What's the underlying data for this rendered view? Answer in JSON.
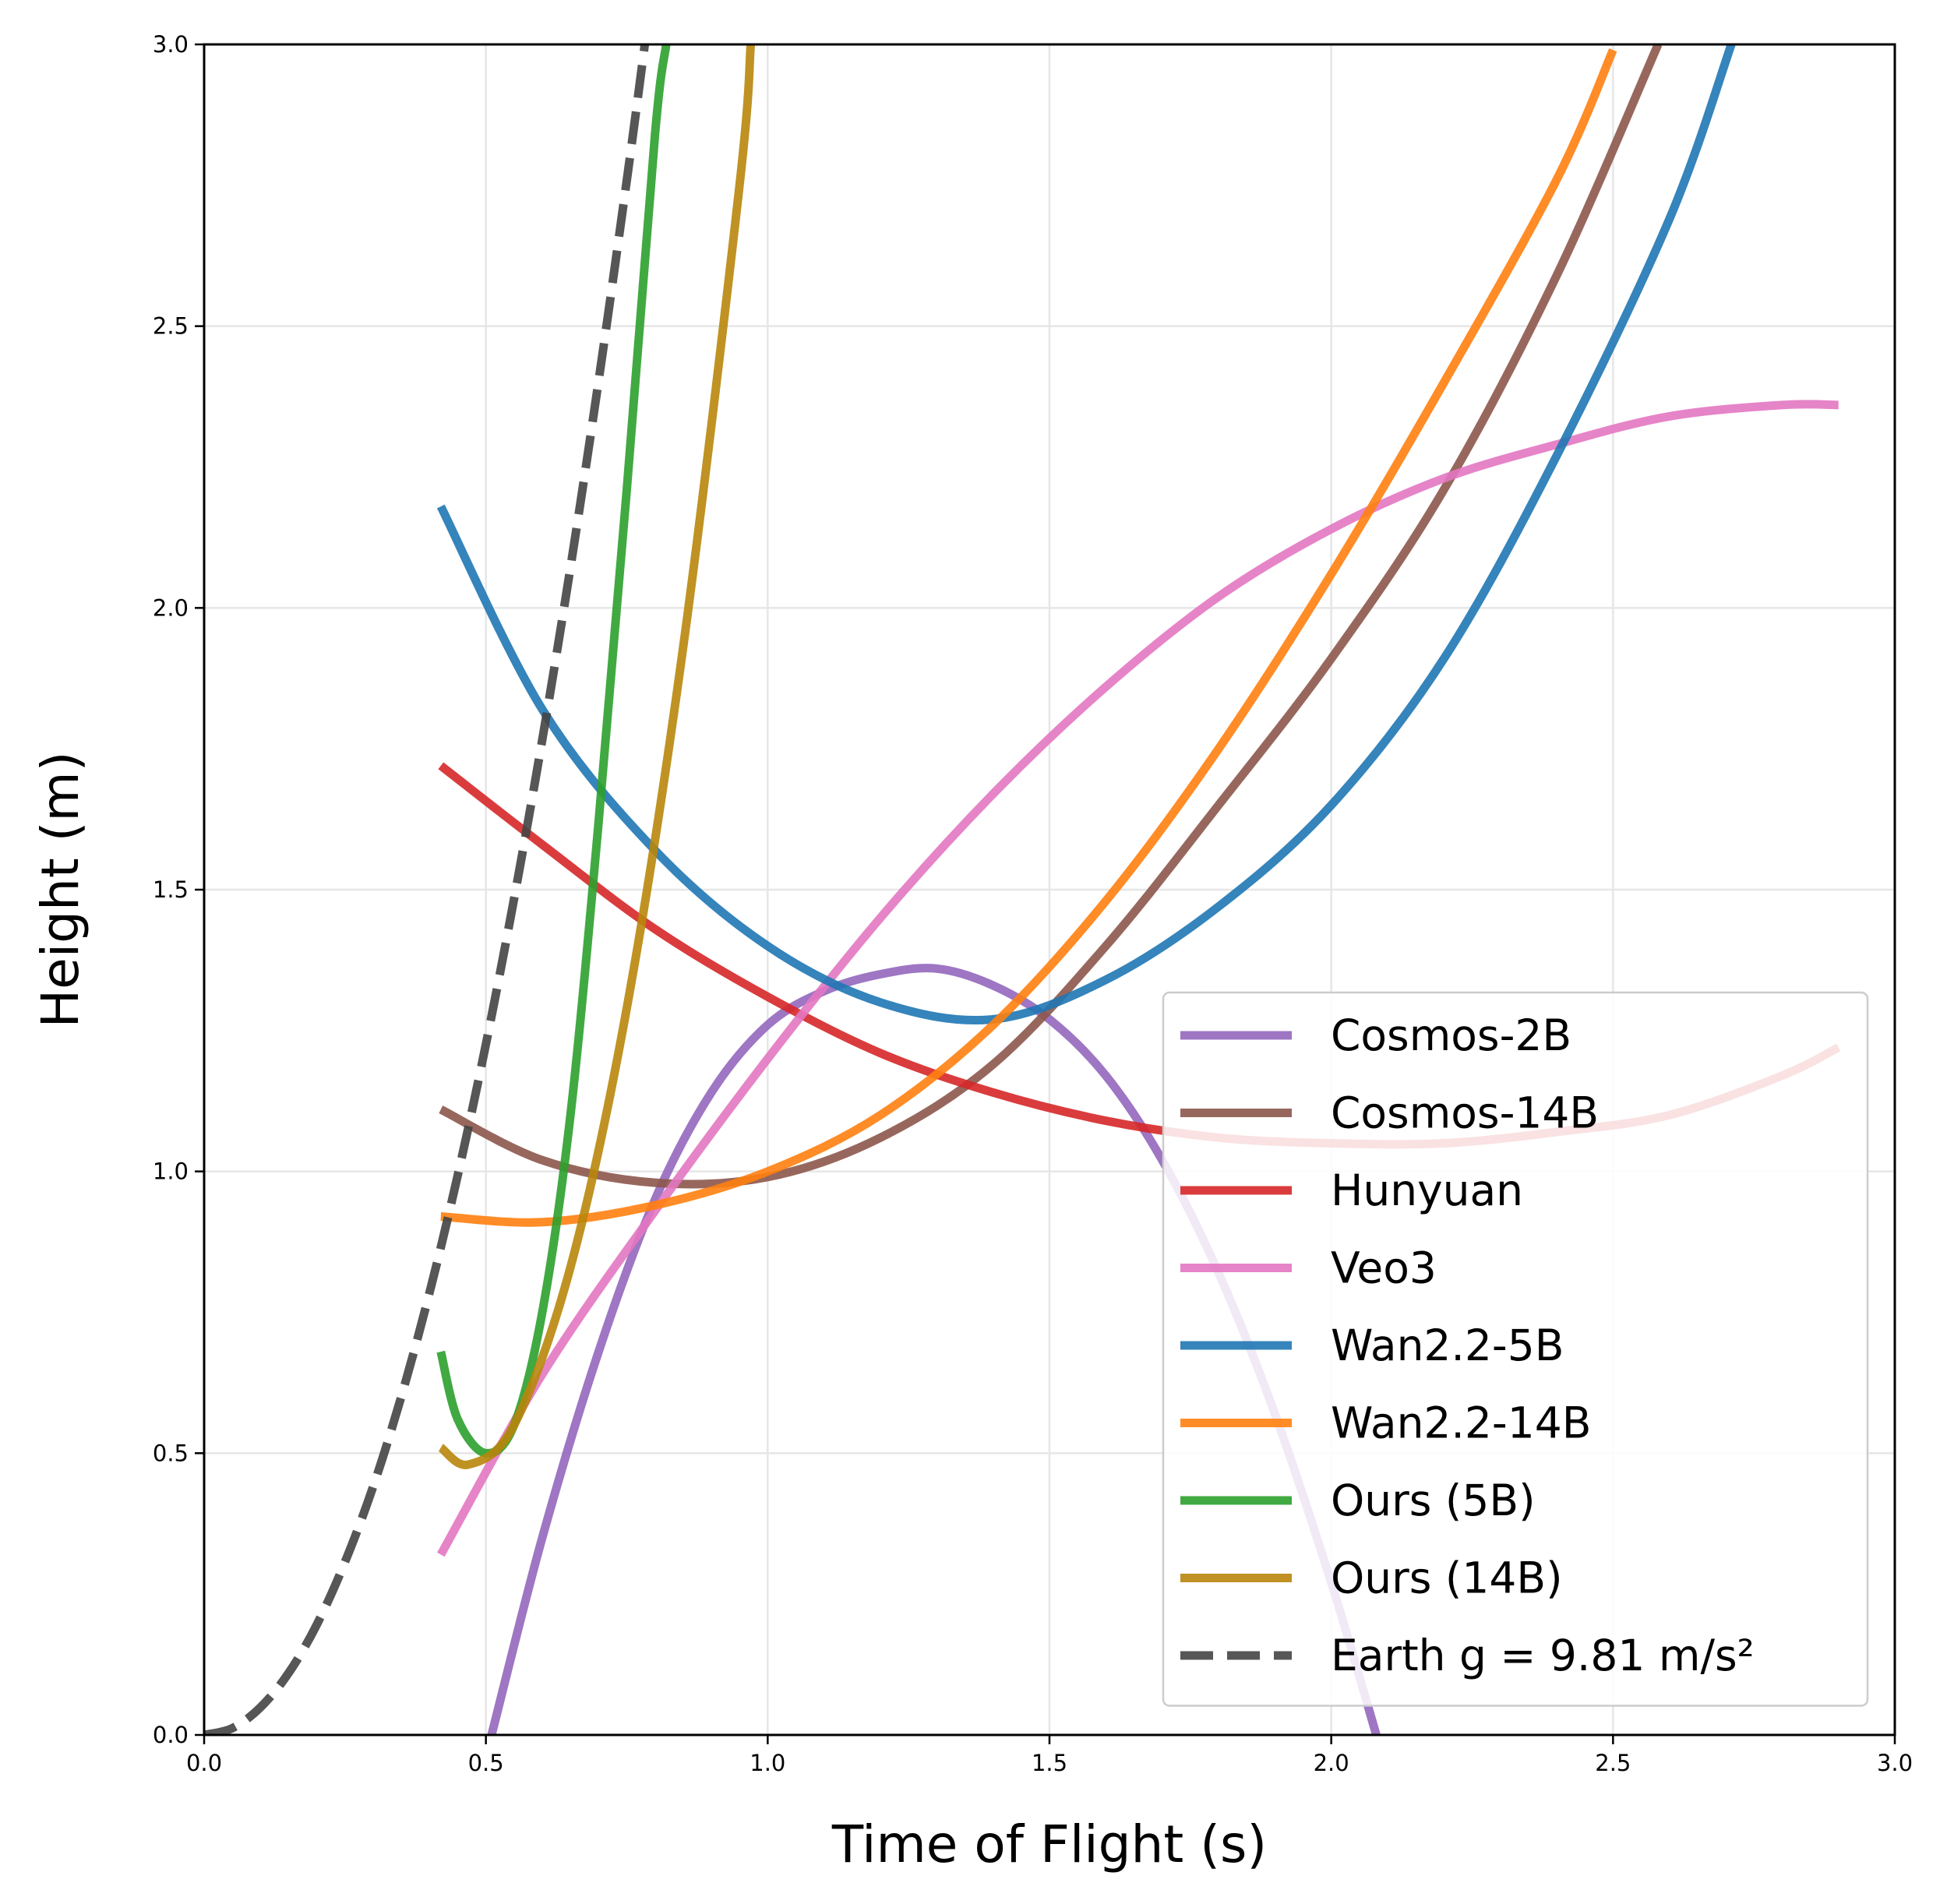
{
  "chart_data": {
    "type": "line",
    "title": "",
    "xlabel": "Time of Flight (s)",
    "ylabel": "Height (m)",
    "xlim": [
      0.0,
      3.0
    ],
    "ylim": [
      0.0,
      3.0
    ],
    "xticks": [
      "0.0",
      "0.5",
      "1.0",
      "1.5",
      "2.0",
      "2.5",
      "3.0"
    ],
    "yticks": [
      "0.0",
      "0.5",
      "1.0",
      "1.5",
      "2.0",
      "2.5",
      "3.0"
    ],
    "grid": true,
    "legend_position": "lower-right",
    "series": [
      {
        "name": "Cosmos-2B",
        "color": "#9467bd",
        "style": "solid",
        "points": [
          [
            0.51,
            0.0
          ],
          [
            0.6,
            0.35
          ],
          [
            0.7,
            0.68
          ],
          [
            0.8,
            0.95
          ],
          [
            0.9,
            1.14
          ],
          [
            1.0,
            1.26
          ],
          [
            1.1,
            1.32
          ],
          [
            1.2,
            1.35
          ],
          [
            1.3,
            1.36
          ],
          [
            1.4,
            1.33
          ],
          [
            1.5,
            1.27
          ],
          [
            1.6,
            1.17
          ],
          [
            1.7,
            1.02
          ],
          [
            1.8,
            0.82
          ],
          [
            1.9,
            0.57
          ],
          [
            2.0,
            0.27
          ],
          [
            2.08,
            0.0
          ]
        ]
      },
      {
        "name": "Cosmos-14B",
        "color": "#8c564b",
        "style": "solid",
        "points": [
          [
            0.42,
            1.11
          ],
          [
            0.6,
            1.02
          ],
          [
            0.8,
            0.98
          ],
          [
            1.0,
            0.99
          ],
          [
            1.2,
            1.06
          ],
          [
            1.4,
            1.19
          ],
          [
            1.6,
            1.4
          ],
          [
            1.8,
            1.65
          ],
          [
            2.0,
            1.91
          ],
          [
            2.2,
            2.21
          ],
          [
            2.4,
            2.59
          ],
          [
            2.58,
            3.0
          ]
        ]
      },
      {
        "name": "Hunyuan",
        "color": "#d62728",
        "style": "solid",
        "points": [
          [
            0.42,
            1.72
          ],
          [
            0.6,
            1.58
          ],
          [
            0.8,
            1.43
          ],
          [
            1.0,
            1.31
          ],
          [
            1.2,
            1.21
          ],
          [
            1.4,
            1.14
          ],
          [
            1.6,
            1.09
          ],
          [
            1.8,
            1.06
          ],
          [
            2.0,
            1.05
          ],
          [
            2.2,
            1.05
          ],
          [
            2.4,
            1.07
          ],
          [
            2.6,
            1.1
          ],
          [
            2.8,
            1.17
          ],
          [
            2.9,
            1.22
          ]
        ]
      },
      {
        "name": "Veo3",
        "color": "#e377c2",
        "style": "solid",
        "points": [
          [
            0.42,
            0.32
          ],
          [
            0.6,
            0.64
          ],
          [
            0.8,
            0.93
          ],
          [
            1.0,
            1.2
          ],
          [
            1.2,
            1.45
          ],
          [
            1.4,
            1.67
          ],
          [
            1.6,
            1.86
          ],
          [
            1.8,
            2.02
          ],
          [
            2.0,
            2.14
          ],
          [
            2.2,
            2.23
          ],
          [
            2.4,
            2.29
          ],
          [
            2.6,
            2.34
          ],
          [
            2.8,
            2.36
          ],
          [
            2.9,
            2.36
          ]
        ]
      },
      {
        "name": "Wan2.2-5B",
        "color": "#1f77b4",
        "style": "solid",
        "points": [
          [
            0.42,
            2.18
          ],
          [
            0.6,
            1.82
          ],
          [
            0.8,
            1.57
          ],
          [
            1.0,
            1.4
          ],
          [
            1.2,
            1.3
          ],
          [
            1.4,
            1.27
          ],
          [
            1.6,
            1.34
          ],
          [
            1.8,
            1.47
          ],
          [
            2.0,
            1.65
          ],
          [
            2.2,
            1.91
          ],
          [
            2.4,
            2.27
          ],
          [
            2.6,
            2.69
          ],
          [
            2.71,
            3.0
          ]
        ]
      },
      {
        "name": "Wan2.2-14B",
        "color": "#ff7f0e",
        "style": "solid",
        "points": [
          [
            0.42,
            0.92
          ],
          [
            0.6,
            0.91
          ],
          [
            0.8,
            0.94
          ],
          [
            1.0,
            1.0
          ],
          [
            1.2,
            1.1
          ],
          [
            1.4,
            1.26
          ],
          [
            1.6,
            1.48
          ],
          [
            1.8,
            1.75
          ],
          [
            2.0,
            2.06
          ],
          [
            2.2,
            2.4
          ],
          [
            2.4,
            2.76
          ],
          [
            2.5,
            2.99
          ]
        ]
      },
      {
        "name": "Ours (5B)",
        "color": "#2ca02c",
        "style": "solid",
        "points": [
          [
            0.42,
            0.68
          ],
          [
            0.45,
            0.56
          ],
          [
            0.5,
            0.5
          ],
          [
            0.55,
            0.55
          ],
          [
            0.6,
            0.75
          ],
          [
            0.65,
            1.1
          ],
          [
            0.7,
            1.62
          ],
          [
            0.75,
            2.21
          ],
          [
            0.8,
            2.84
          ],
          [
            0.82,
            3.0
          ]
        ]
      },
      {
        "name": "Ours (14B)",
        "color": "#b8860b",
        "style": "solid",
        "points": [
          [
            0.42,
            0.51
          ],
          [
            0.47,
            0.48
          ],
          [
            0.55,
            0.55
          ],
          [
            0.65,
            0.83
          ],
          [
            0.75,
            1.29
          ],
          [
            0.85,
            1.93
          ],
          [
            0.95,
            2.75
          ],
          [
            0.97,
            3.0
          ]
        ]
      },
      {
        "name": "Earth g = 9.81 m/s²",
        "color": "#444444",
        "style": "dashed",
        "points": [
          [
            0.0,
            0.0
          ],
          [
            0.05,
            0.012
          ],
          [
            0.1,
            0.049
          ],
          [
            0.15,
            0.11
          ],
          [
            0.2,
            0.196
          ],
          [
            0.25,
            0.307
          ],
          [
            0.3,
            0.441
          ],
          [
            0.35,
            0.601
          ],
          [
            0.4,
            0.785
          ],
          [
            0.45,
            0.993
          ],
          [
            0.5,
            1.226
          ],
          [
            0.55,
            1.484
          ],
          [
            0.6,
            1.766
          ],
          [
            0.65,
            2.072
          ],
          [
            0.7,
            2.403
          ],
          [
            0.75,
            2.759
          ],
          [
            0.782,
            3.0
          ]
        ]
      }
    ]
  }
}
